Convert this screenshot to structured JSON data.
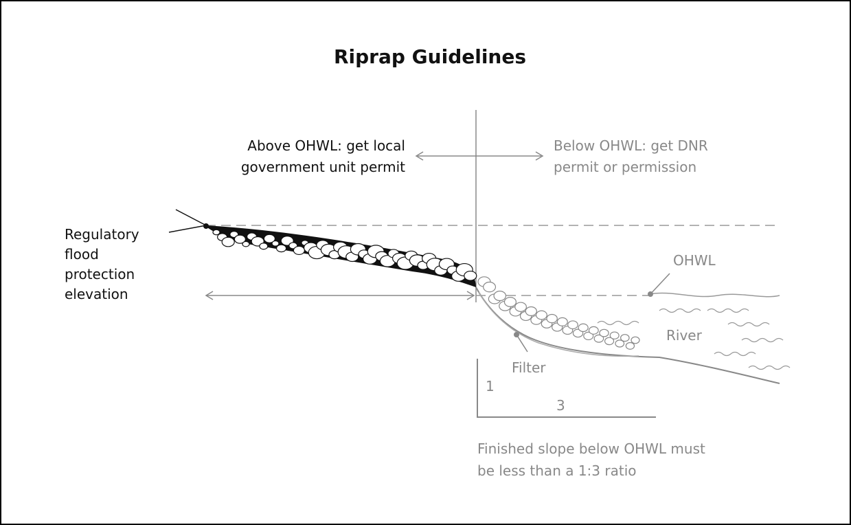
{
  "header": {
    "title": "Riprap Guidelines"
  },
  "labels": {
    "above": [
      "Above OHWL: get local",
      "government unit permit"
    ],
    "below": [
      "Below OHWL: get DNR",
      "permit or permission"
    ],
    "flood": [
      "Regulatory",
      "flood",
      "protection",
      "elevation"
    ],
    "ohwl": "OHWL",
    "river": "River",
    "filter": "Filter",
    "rise": "1",
    "run": "3",
    "note": [
      "Finished slope below OHWL must",
      "be less than a 1:3 ratio"
    ]
  }
}
